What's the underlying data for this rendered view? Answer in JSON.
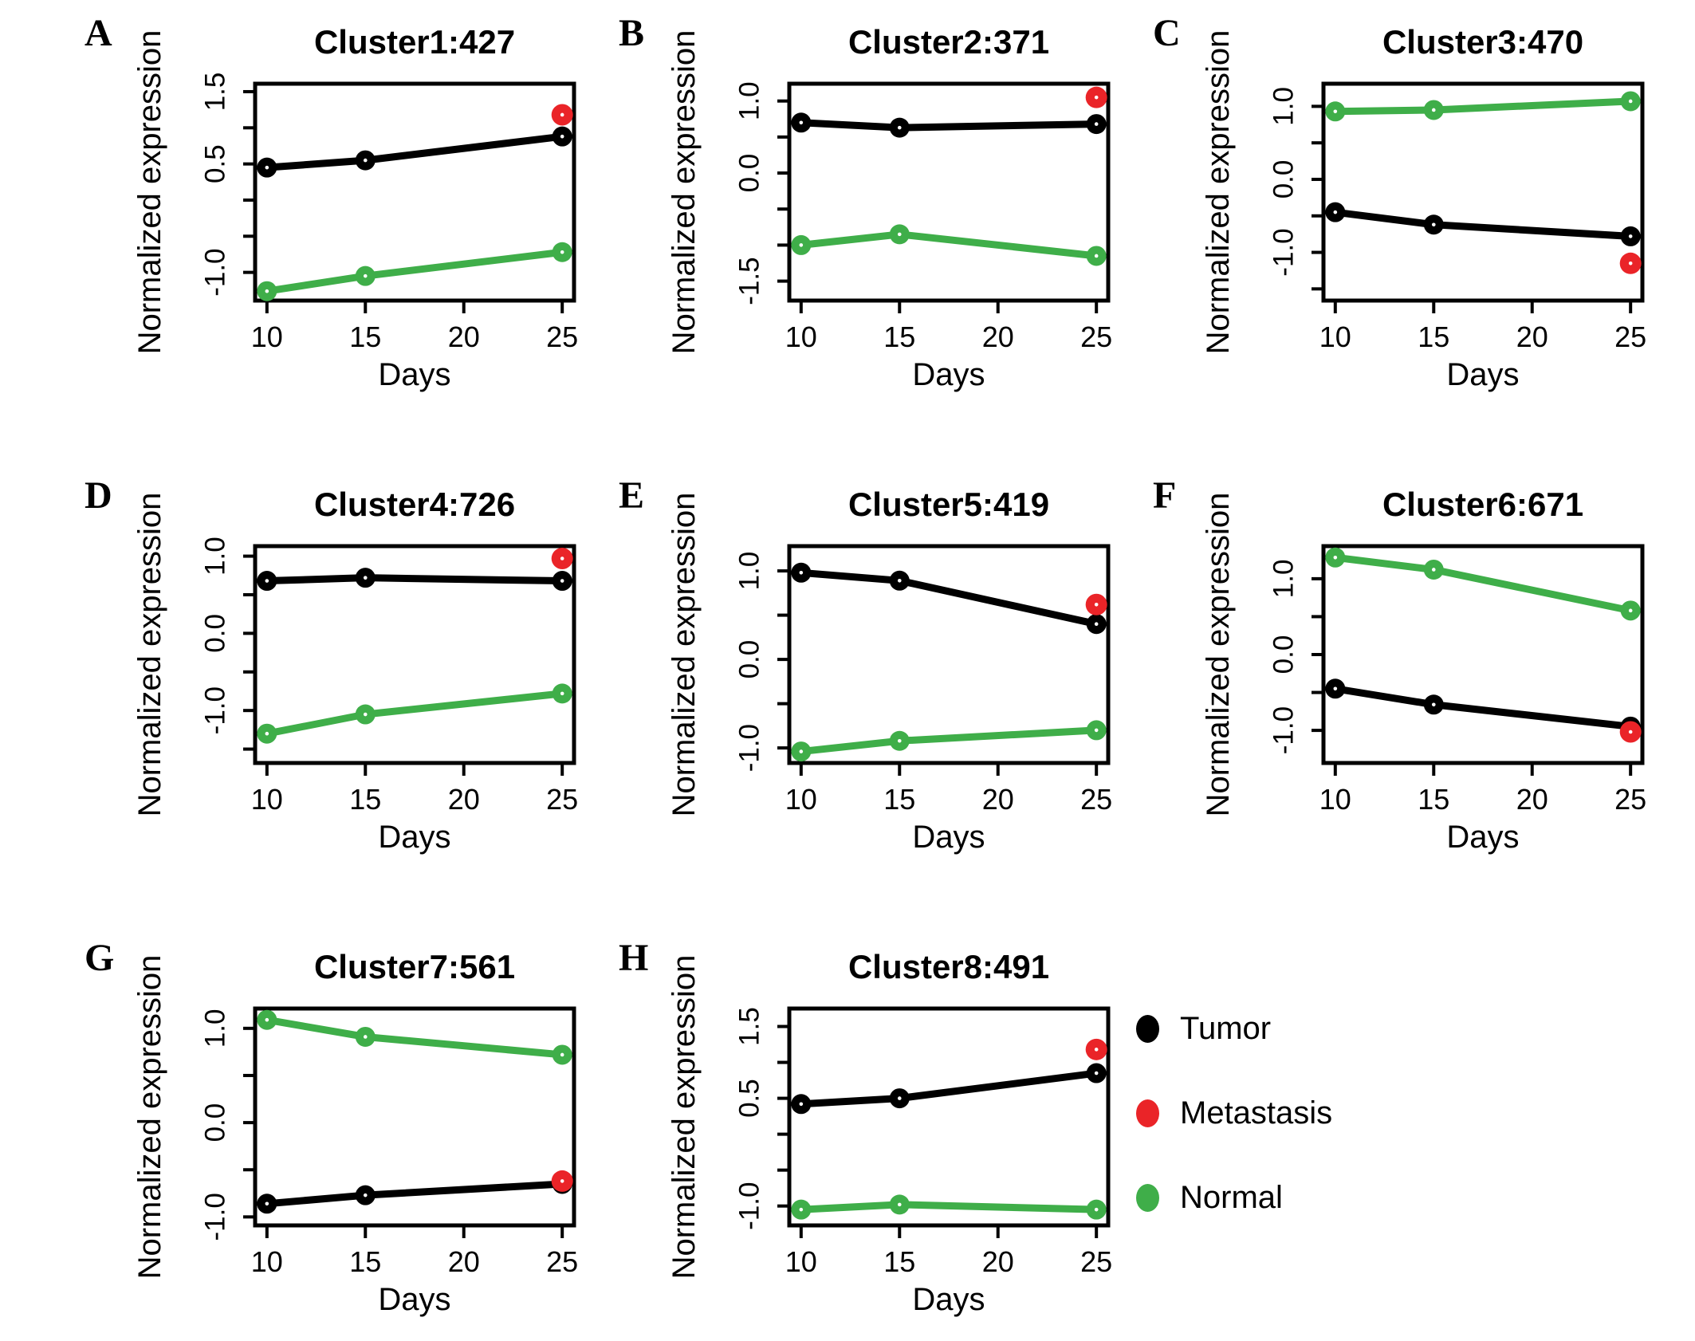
{
  "figure": {
    "background": "#ffffff",
    "colors": {
      "tumor": "#000000",
      "metastasis": "#ea2428",
      "normal": "#3fae49"
    },
    "axis": {
      "xlabel": "Days",
      "ylabel": "Normalized expression",
      "x_ticks": [
        10,
        15,
        20,
        25
      ],
      "x_range": [
        9.4,
        25.6
      ]
    },
    "legend": {
      "items": [
        {
          "label": "Tumor",
          "color_key": "tumor"
        },
        {
          "label": "Metastasis",
          "color_key": "metastasis"
        },
        {
          "label": "Normal",
          "color_key": "normal"
        }
      ]
    }
  },
  "chart_data": [
    {
      "type": "line",
      "letter": "A",
      "title": "Cluster1:427",
      "x": [
        10,
        15,
        25
      ],
      "series": [
        {
          "name": "Tumor",
          "color_key": "tumor",
          "values": [
            0.45,
            0.55,
            0.88
          ]
        },
        {
          "name": "Normal",
          "color_key": "normal",
          "values": [
            -1.26,
            -1.05,
            -0.72
          ]
        }
      ],
      "metastasis_point": {
        "x": 25,
        "y": 1.18
      },
      "ylim": [
        -1.39,
        1.61
      ],
      "yticks": [
        1.5,
        1.0,
        0.5,
        0,
        -0.5,
        -1.0
      ],
      "ytick_labels": {
        "1.5": "1.5",
        "0.5": "0.5",
        "-1": "-1.0"
      }
    },
    {
      "type": "line",
      "letter": "B",
      "title": "Cluster2:371",
      "x": [
        10,
        15,
        25
      ],
      "series": [
        {
          "name": "Tumor",
          "color_key": "tumor",
          "values": [
            0.7,
            0.63,
            0.68
          ]
        },
        {
          "name": "Normal",
          "color_key": "normal",
          "values": [
            -1.0,
            -0.85,
            -1.15
          ]
        }
      ],
      "metastasis_point": {
        "x": 25,
        "y": 1.05
      },
      "ylim": [
        -1.77,
        1.24
      ],
      "yticks": [
        1.0,
        0.5,
        0,
        -0.5,
        -1.0,
        -1.5
      ],
      "ytick_labels": {
        "1": "1.0",
        "0": "0.0",
        "-1.5": "-1.5"
      }
    },
    {
      "type": "line",
      "letter": "C",
      "title": "Cluster3:470",
      "x": [
        10,
        15,
        25
      ],
      "series": [
        {
          "name": "Tumor",
          "color_key": "tumor",
          "values": [
            -0.45,
            -0.62,
            -0.78
          ]
        },
        {
          "name": "Normal",
          "color_key": "normal",
          "values": [
            0.93,
            0.95,
            1.07
          ]
        }
      ],
      "metastasis_point": {
        "x": 25,
        "y": -1.15
      },
      "ylim": [
        -1.66,
        1.31
      ],
      "yticks": [
        1.0,
        0.5,
        0,
        -0.5,
        -1.0,
        -1.5
      ],
      "ytick_labels": {
        "1": "1.0",
        "0": "0.0",
        "-1": "-1.0"
      }
    },
    {
      "type": "line",
      "letter": "D",
      "title": "Cluster4:726",
      "x": [
        10,
        15,
        25
      ],
      "series": [
        {
          "name": "Tumor",
          "color_key": "tumor",
          "values": [
            0.68,
            0.72,
            0.68
          ]
        },
        {
          "name": "Normal",
          "color_key": "normal",
          "values": [
            -1.3,
            -1.05,
            -0.78
          ]
        }
      ],
      "metastasis_point": {
        "x": 25,
        "y": 0.97
      },
      "ylim": [
        -1.68,
        1.13
      ],
      "yticks": [
        1.0,
        0.5,
        0,
        -0.5,
        -1.0,
        -1.5
      ],
      "ytick_labels": {
        "1": "1.0",
        "0": "0.0",
        "-1": "-1.0"
      }
    },
    {
      "type": "line",
      "letter": "E",
      "title": "Cluster5:419",
      "x": [
        10,
        15,
        25
      ],
      "series": [
        {
          "name": "Tumor",
          "color_key": "tumor",
          "values": [
            0.98,
            0.89,
            0.4
          ]
        },
        {
          "name": "Normal",
          "color_key": "normal",
          "values": [
            -1.04,
            -0.92,
            -0.8
          ]
        }
      ],
      "metastasis_point": {
        "x": 25,
        "y": 0.62
      },
      "ylim": [
        -1.17,
        1.28
      ],
      "yticks": [
        1.0,
        0.5,
        0,
        -0.5,
        -1.0
      ],
      "ytick_labels": {
        "1": "1.0",
        "0": "0.0",
        "-1": "-1.0"
      }
    },
    {
      "type": "line",
      "letter": "F",
      "title": "Cluster6:671",
      "x": [
        10,
        15,
        25
      ],
      "series": [
        {
          "name": "Tumor",
          "color_key": "tumor",
          "values": [
            -0.45,
            -0.66,
            -0.95
          ]
        },
        {
          "name": "Normal",
          "color_key": "normal",
          "values": [
            1.28,
            1.12,
            0.58
          ]
        }
      ],
      "metastasis_point": {
        "x": 25,
        "y": -1.02
      },
      "ylim": [
        -1.43,
        1.43
      ],
      "yticks": [
        1.0,
        0.5,
        0,
        -0.5,
        -1.0
      ],
      "ytick_labels": {
        "1": "1.0",
        "0": "0.0",
        "-1": "-1.0"
      }
    },
    {
      "type": "line",
      "letter": "G",
      "title": "Cluster7:561",
      "x": [
        10,
        15,
        25
      ],
      "series": [
        {
          "name": "Tumor",
          "color_key": "tumor",
          "values": [
            -0.86,
            -0.77,
            -0.65
          ]
        },
        {
          "name": "Normal",
          "color_key": "normal",
          "values": [
            1.09,
            0.91,
            0.72
          ]
        }
      ],
      "metastasis_point": {
        "x": 25,
        "y": -0.62
      },
      "ylim": [
        -1.09,
        1.21
      ],
      "yticks": [
        1.0,
        0.5,
        0,
        -0.5,
        -1.0
      ],
      "ytick_labels": {
        "1": "1.0",
        "0": "0.0",
        "-1": "-1.0"
      }
    },
    {
      "type": "line",
      "letter": "H",
      "title": "Cluster8:491",
      "x": [
        10,
        15,
        25
      ],
      "series": [
        {
          "name": "Tumor",
          "color_key": "tumor",
          "values": [
            0.42,
            0.5,
            0.85
          ]
        },
        {
          "name": "Normal",
          "color_key": "normal",
          "values": [
            -1.05,
            -0.98,
            -1.05
          ]
        }
      ],
      "metastasis_point": {
        "x": 25,
        "y": 1.18
      },
      "ylim": [
        -1.27,
        1.75
      ],
      "yticks": [
        1.5,
        1.0,
        0.5,
        0,
        -0.5,
        -1.0
      ],
      "ytick_labels": {
        "1.5": "1.5",
        "0.5": "0.5",
        "-1": "-1.0"
      }
    }
  ]
}
